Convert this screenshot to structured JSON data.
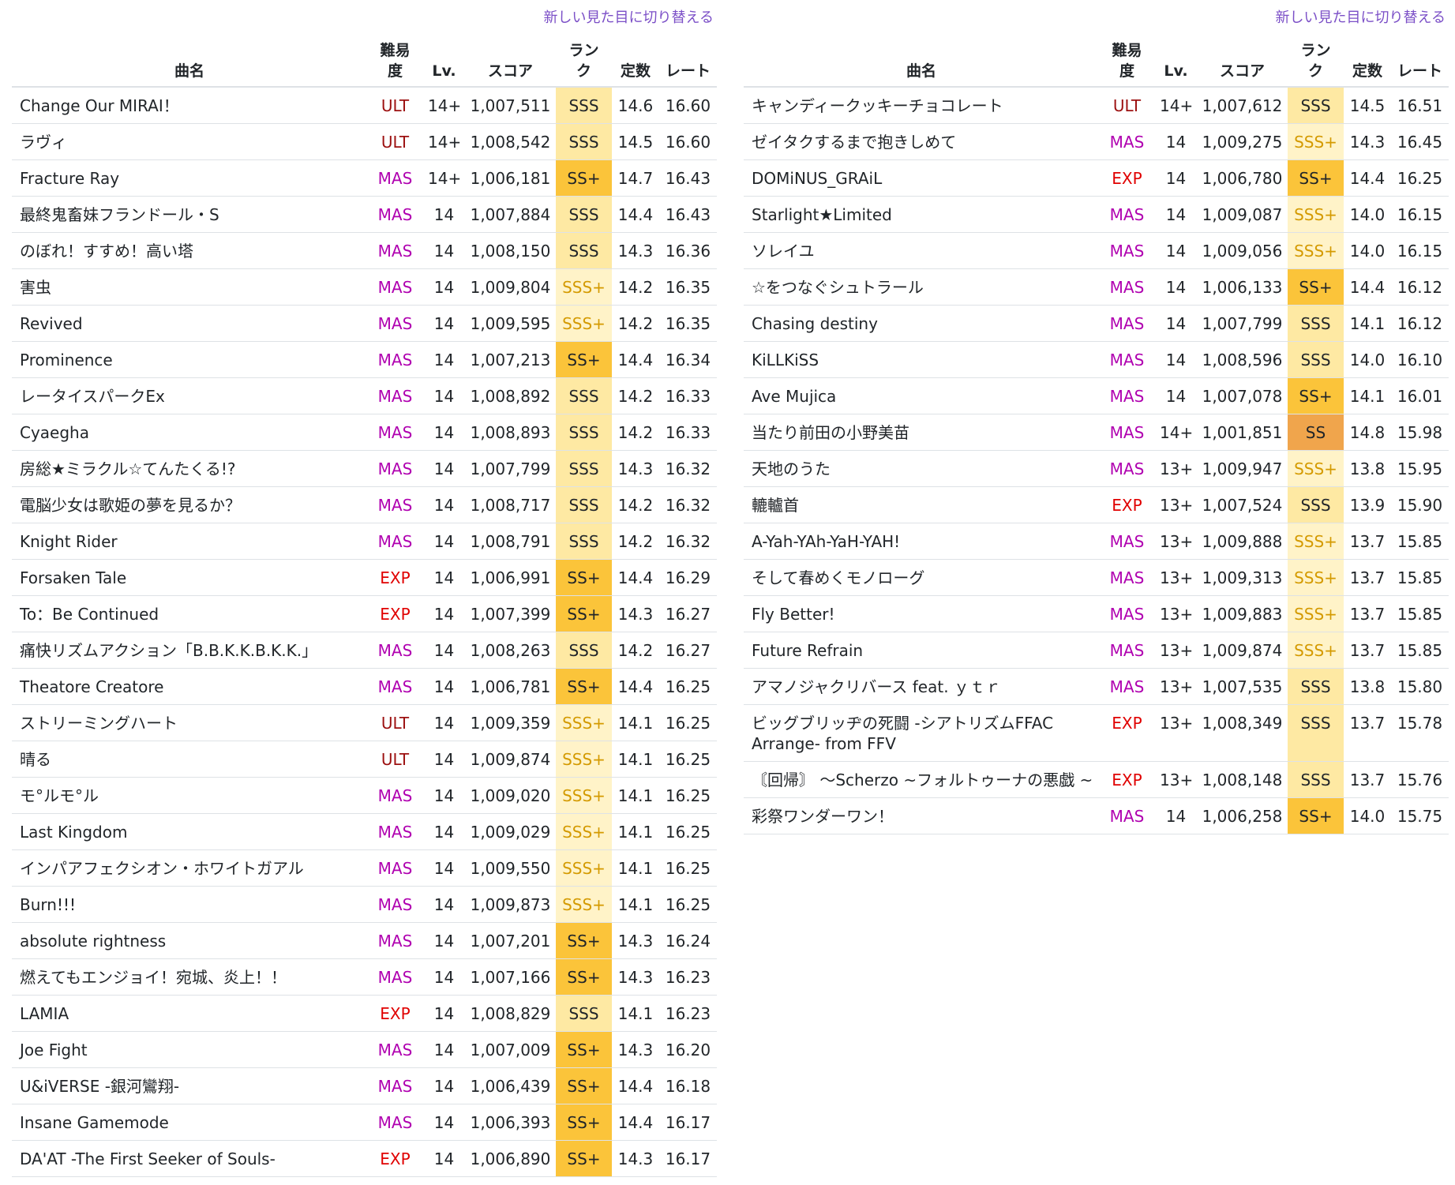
{
  "tables": [
    {
      "link": "新しい見た目に切り替える",
      "headers": [
        "曲名",
        "難易度",
        "Lv.",
        "スコア",
        "ランク",
        "定数",
        "レート"
      ],
      "rows": [
        [
          "Change Our MIRAI！",
          "ULT",
          "14+",
          "1,007,511",
          "SSS",
          "14.6",
          "16.60"
        ],
        [
          "ラヴィ",
          "ULT",
          "14+",
          "1,008,542",
          "SSS",
          "14.5",
          "16.60"
        ],
        [
          "Fracture Ray",
          "MAS",
          "14+",
          "1,006,181",
          "SS+",
          "14.7",
          "16.43"
        ],
        [
          "最終鬼畜妹フランドール・S",
          "MAS",
          "14",
          "1,007,884",
          "SSS",
          "14.4",
          "16.43"
        ],
        [
          "のぼれ！すすめ！高い塔",
          "MAS",
          "14",
          "1,008,150",
          "SSS",
          "14.3",
          "16.36"
        ],
        [
          "害虫",
          "MAS",
          "14",
          "1,009,804",
          "SSS+",
          "14.2",
          "16.35"
        ],
        [
          "Revived",
          "MAS",
          "14",
          "1,009,595",
          "SSS+",
          "14.2",
          "16.35"
        ],
        [
          "Prominence",
          "MAS",
          "14",
          "1,007,213",
          "SS+",
          "14.4",
          "16.34"
        ],
        [
          "レータイスパークEx",
          "MAS",
          "14",
          "1,008,892",
          "SSS",
          "14.2",
          "16.33"
        ],
        [
          "Cyaegha",
          "MAS",
          "14",
          "1,008,893",
          "SSS",
          "14.2",
          "16.33"
        ],
        [
          "房総★ミラクル☆てんたくる!?",
          "MAS",
          "14",
          "1,007,799",
          "SSS",
          "14.3",
          "16.32"
        ],
        [
          "電脳少女は歌姫の夢を見るか？",
          "MAS",
          "14",
          "1,008,717",
          "SSS",
          "14.2",
          "16.32"
        ],
        [
          "Knight Rider",
          "MAS",
          "14",
          "1,008,791",
          "SSS",
          "14.2",
          "16.32"
        ],
        [
          "Forsaken Tale",
          "EXP",
          "14",
          "1,006,991",
          "SS+",
          "14.4",
          "16.29"
        ],
        [
          "To：Be Continued",
          "EXP",
          "14",
          "1,007,399",
          "SS+",
          "14.3",
          "16.27"
        ],
        [
          "痛快リズムアクション「B.B.K.K.B.K.K.」",
          "MAS",
          "14",
          "1,008,263",
          "SSS",
          "14.2",
          "16.27"
        ],
        [
          "Theatore Creatore",
          "MAS",
          "14",
          "1,006,781",
          "SS+",
          "14.4",
          "16.25"
        ],
        [
          "ストリーミングハート",
          "ULT",
          "14",
          "1,009,359",
          "SSS+",
          "14.1",
          "16.25"
        ],
        [
          "晴る",
          "ULT",
          "14",
          "1,009,874",
          "SSS+",
          "14.1",
          "16.25"
        ],
        [
          "モ°ルモ°ル",
          "MAS",
          "14",
          "1,009,020",
          "SSS+",
          "14.1",
          "16.25"
        ],
        [
          "Last Kingdom",
          "MAS",
          "14",
          "1,009,029",
          "SSS+",
          "14.1",
          "16.25"
        ],
        [
          "インパアフェクシオン・ホワイトガアル",
          "MAS",
          "14",
          "1,009,550",
          "SSS+",
          "14.1",
          "16.25"
        ],
        [
          "Burn!!!",
          "MAS",
          "14",
          "1,009,873",
          "SSS+",
          "14.1",
          "16.25"
        ],
        [
          "absolute rightness",
          "MAS",
          "14",
          "1,007,201",
          "SS+",
          "14.3",
          "16.24"
        ],
        [
          "燃えてもエンジョイ！宛城、炎上！！",
          "MAS",
          "14",
          "1,007,166",
          "SS+",
          "14.3",
          "16.23"
        ],
        [
          "LAMIA",
          "EXP",
          "14",
          "1,008,829",
          "SSS",
          "14.1",
          "16.23"
        ],
        [
          "Joe Fight",
          "MAS",
          "14",
          "1,007,009",
          "SS+",
          "14.3",
          "16.20"
        ],
        [
          "U&iVERSE -銀河鸞翔-",
          "MAS",
          "14",
          "1,006,439",
          "SS+",
          "14.4",
          "16.18"
        ],
        [
          "Insane Gamemode",
          "MAS",
          "14",
          "1,006,393",
          "SS+",
          "14.4",
          "16.17"
        ],
        [
          "DA'AT -The First Seeker of Souls-",
          "EXP",
          "14",
          "1,006,890",
          "SS+",
          "14.3",
          "16.17"
        ]
      ]
    },
    {
      "link": "新しい見た目に切り替える",
      "headers": [
        "曲名",
        "難易度",
        "Lv.",
        "スコア",
        "ランク",
        "定数",
        "レート"
      ],
      "rows": [
        [
          "キャンディークッキーチョコレート",
          "ULT",
          "14+",
          "1,007,612",
          "SSS",
          "14.5",
          "16.51"
        ],
        [
          "ゼイタクするまで抱きしめて",
          "MAS",
          "14",
          "1,009,275",
          "SSS+",
          "14.3",
          "16.45"
        ],
        [
          "DOMiNUS_GRAiL",
          "EXP",
          "14",
          "1,006,780",
          "SS+",
          "14.4",
          "16.25"
        ],
        [
          "Starlight★Limited",
          "MAS",
          "14",
          "1,009,087",
          "SSS+",
          "14.0",
          "16.15"
        ],
        [
          "ソレイユ",
          "MAS",
          "14",
          "1,009,056",
          "SSS+",
          "14.0",
          "16.15"
        ],
        [
          "☆をつなぐシュトラール",
          "MAS",
          "14",
          "1,006,133",
          "SS+",
          "14.4",
          "16.12"
        ],
        [
          "Chasing destiny",
          "MAS",
          "14",
          "1,007,799",
          "SSS",
          "14.1",
          "16.12"
        ],
        [
          "KiLLKiSS",
          "MAS",
          "14",
          "1,008,596",
          "SSS",
          "14.0",
          "16.10"
        ],
        [
          "Ave Mujica",
          "MAS",
          "14",
          "1,007,078",
          "SS+",
          "14.1",
          "16.01"
        ],
        [
          "当たり前田の小野美苗",
          "MAS",
          "14+",
          "1,001,851",
          "SS",
          "14.8",
          "15.98"
        ],
        [
          "天地のうた",
          "MAS",
          "13+",
          "1,009,947",
          "SSS+",
          "13.8",
          "15.95"
        ],
        [
          "轆轤首",
          "EXP",
          "13+",
          "1,007,524",
          "SSS",
          "13.9",
          "15.90"
        ],
        [
          "A-Yah-YAh-YaH-YAH!",
          "MAS",
          "13+",
          "1,009,888",
          "SSS+",
          "13.7",
          "15.85"
        ],
        [
          "そして春めくモノローグ",
          "MAS",
          "13+",
          "1,009,313",
          "SSS+",
          "13.7",
          "15.85"
        ],
        [
          "Fly Better!",
          "MAS",
          "13+",
          "1,009,883",
          "SSS+",
          "13.7",
          "15.85"
        ],
        [
          "Future Refrain",
          "MAS",
          "13+",
          "1,009,874",
          "SSS+",
          "13.7",
          "15.85"
        ],
        [
          "アマノジャクリバース feat. ｙｔｒ",
          "MAS",
          "13+",
          "1,007,535",
          "SSS",
          "13.8",
          "15.80"
        ],
        [
          "ビッグブリッヂの死闘 -シアトリズムFFAC Arrange- from FFV",
          "EXP",
          "13+",
          "1,008,349",
          "SSS",
          "13.7",
          "15.78"
        ],
        [
          "〘回帰〙 ～Scherzo ~フォルトゥーナの悪戯 ~",
          "EXP",
          "13+",
          "1,008,148",
          "SSS",
          "13.7",
          "15.76"
        ],
        [
          "彩祭ワンダーワン！",
          "MAS",
          "14",
          "1,006,258",
          "SS+",
          "14.0",
          "15.75"
        ]
      ]
    }
  ]
}
